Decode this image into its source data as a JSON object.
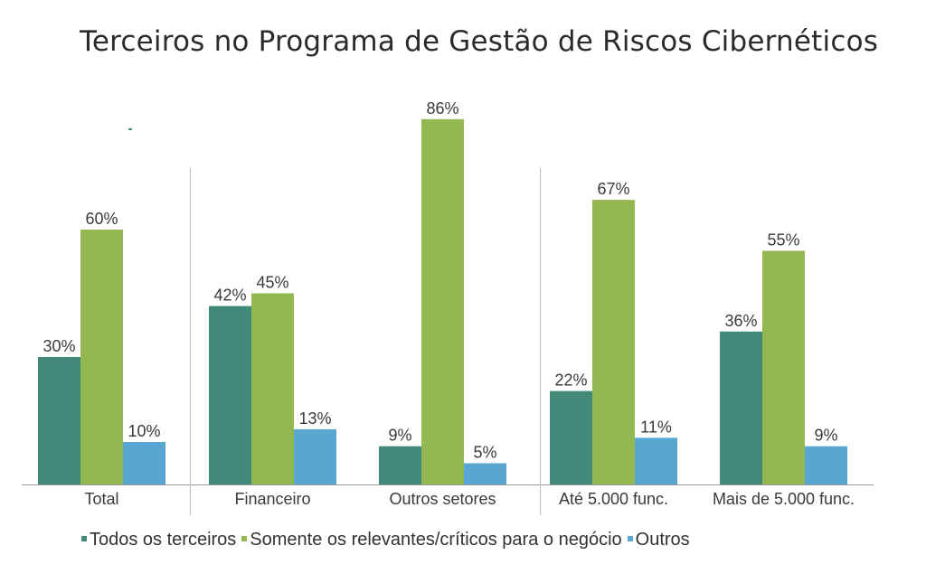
{
  "chart_data": {
    "type": "bar",
    "title": "Terceiros no Programa de Gestão de Riscos Cibernéticos",
    "categories": [
      "Total",
      "Financeiro",
      "Outros setores",
      "Até 5.000 func.",
      "Mais de 5.000 func."
    ],
    "series": [
      {
        "name": "Todos os terceiros",
        "color": "#43897A",
        "values": [
          30,
          42,
          9,
          22,
          36
        ],
        "labels": [
          "30%",
          "42%",
          "9%",
          "22%",
          "36%"
        ]
      },
      {
        "name": "Somente os relevantes/críticos para o negócio",
        "color": "#93B852",
        "values": [
          60,
          45,
          86,
          67,
          55
        ],
        "labels": [
          "60%",
          "45%",
          "86%",
          "67%",
          "55%"
        ]
      },
      {
        "name": "Outros",
        "color": "#58A7D2",
        "values": [
          10,
          13,
          5,
          11,
          9
        ],
        "labels": [
          "10%",
          "13%",
          "5%",
          "11%",
          "9%"
        ]
      }
    ],
    "ylim": [
      0,
      100
    ],
    "xlabel": "",
    "ylabel": "",
    "grid": false,
    "legend_position": "bottom",
    "group_separators_after": [
      0,
      2
    ]
  }
}
